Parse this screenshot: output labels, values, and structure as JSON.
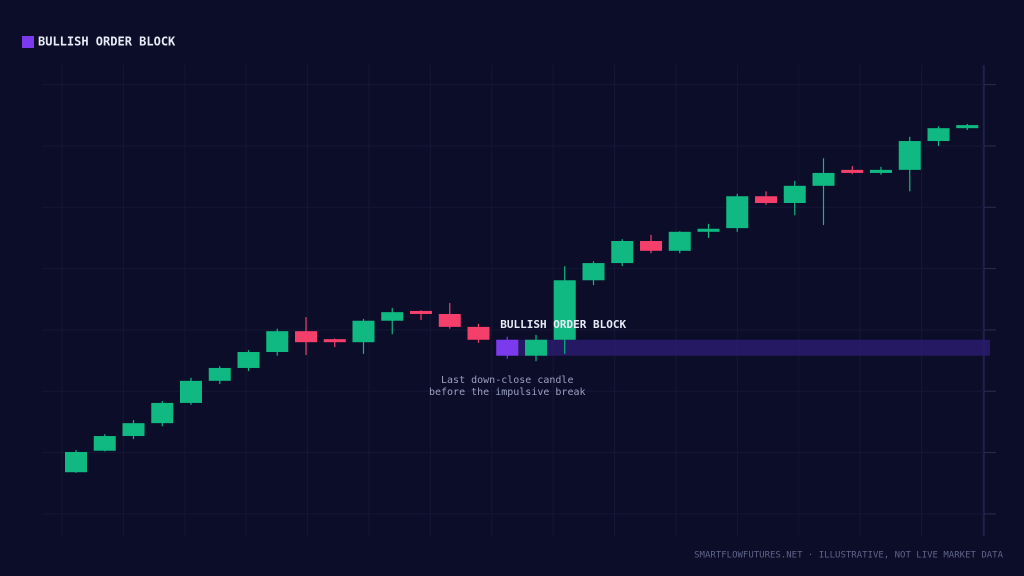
{
  "chart_data": {
    "type": "candlestick",
    "legend": {
      "label": "BULLISH ORDER BLOCK",
      "color": "#7c3aed",
      "corner": "top-left"
    },
    "open": [
      16.8,
      20.3,
      22.7,
      24.8,
      28.1,
      31.7,
      33.8,
      36.4,
      39.8,
      38.5,
      38.0,
      41.5,
      43.1,
      42.6,
      40.5,
      38.4,
      35.8,
      38.4,
      48.1,
      50.9,
      54.5,
      52.9,
      56.0,
      56.6,
      61.8,
      60.7,
      63.5,
      66.1,
      65.6,
      66.1,
      70.8,
      72.9
    ],
    "high": [
      20.4,
      23.0,
      25.3,
      28.4,
      32.2,
      34.1,
      36.7,
      40.2,
      42.1,
      38.6,
      41.8,
      43.6,
      43.2,
      44.4,
      41.0,
      38.9,
      39.2,
      50.4,
      51.2,
      54.8,
      55.5,
      56.1,
      57.3,
      62.2,
      62.6,
      64.3,
      68.0,
      66.7,
      66.6,
      71.5,
      73.2,
      73.6
    ],
    "low": [
      16.7,
      20.2,
      22.2,
      24.3,
      27.8,
      31.2,
      33.3,
      35.8,
      35.9,
      37.2,
      36.1,
      39.3,
      41.6,
      40.2,
      37.9,
      35.3,
      34.9,
      36.1,
      47.3,
      50.4,
      52.5,
      52.5,
      55.0,
      56.0,
      60.4,
      58.7,
      57.1,
      65.4,
      65.3,
      62.6,
      70.0,
      72.6
    ],
    "close": [
      20.1,
      22.7,
      24.8,
      28.1,
      31.7,
      33.8,
      36.4,
      39.8,
      38.0,
      38.0,
      41.5,
      42.9,
      42.6,
      40.5,
      38.4,
      35.8,
      38.4,
      48.1,
      50.9,
      54.5,
      52.9,
      56.0,
      56.5,
      61.8,
      60.7,
      63.5,
      65.6,
      65.6,
      66.1,
      70.8,
      72.9,
      73.4
    ],
    "up_color": "#10b981",
    "down_color": "#f43f6b",
    "order_block": {
      "label": "BULLISH ORDER BLOCK",
      "candle_index": 15,
      "top": 38.4,
      "bottom": 35.8,
      "color": "#7c3aed",
      "zone_color": "#2b1c6e"
    },
    "annotation": [
      "Last down-close candle",
      "before the impulsive break"
    ],
    "ylim": [
      6.4,
      83.2
    ],
    "ygrid": [
      10,
      20,
      30,
      40,
      50,
      60,
      70,
      80
    ],
    "grid": true,
    "footer": "SMARTFLOWFUTURES.NET · ILLUSTRATIVE, NOT LIVE MARKET DATA"
  }
}
